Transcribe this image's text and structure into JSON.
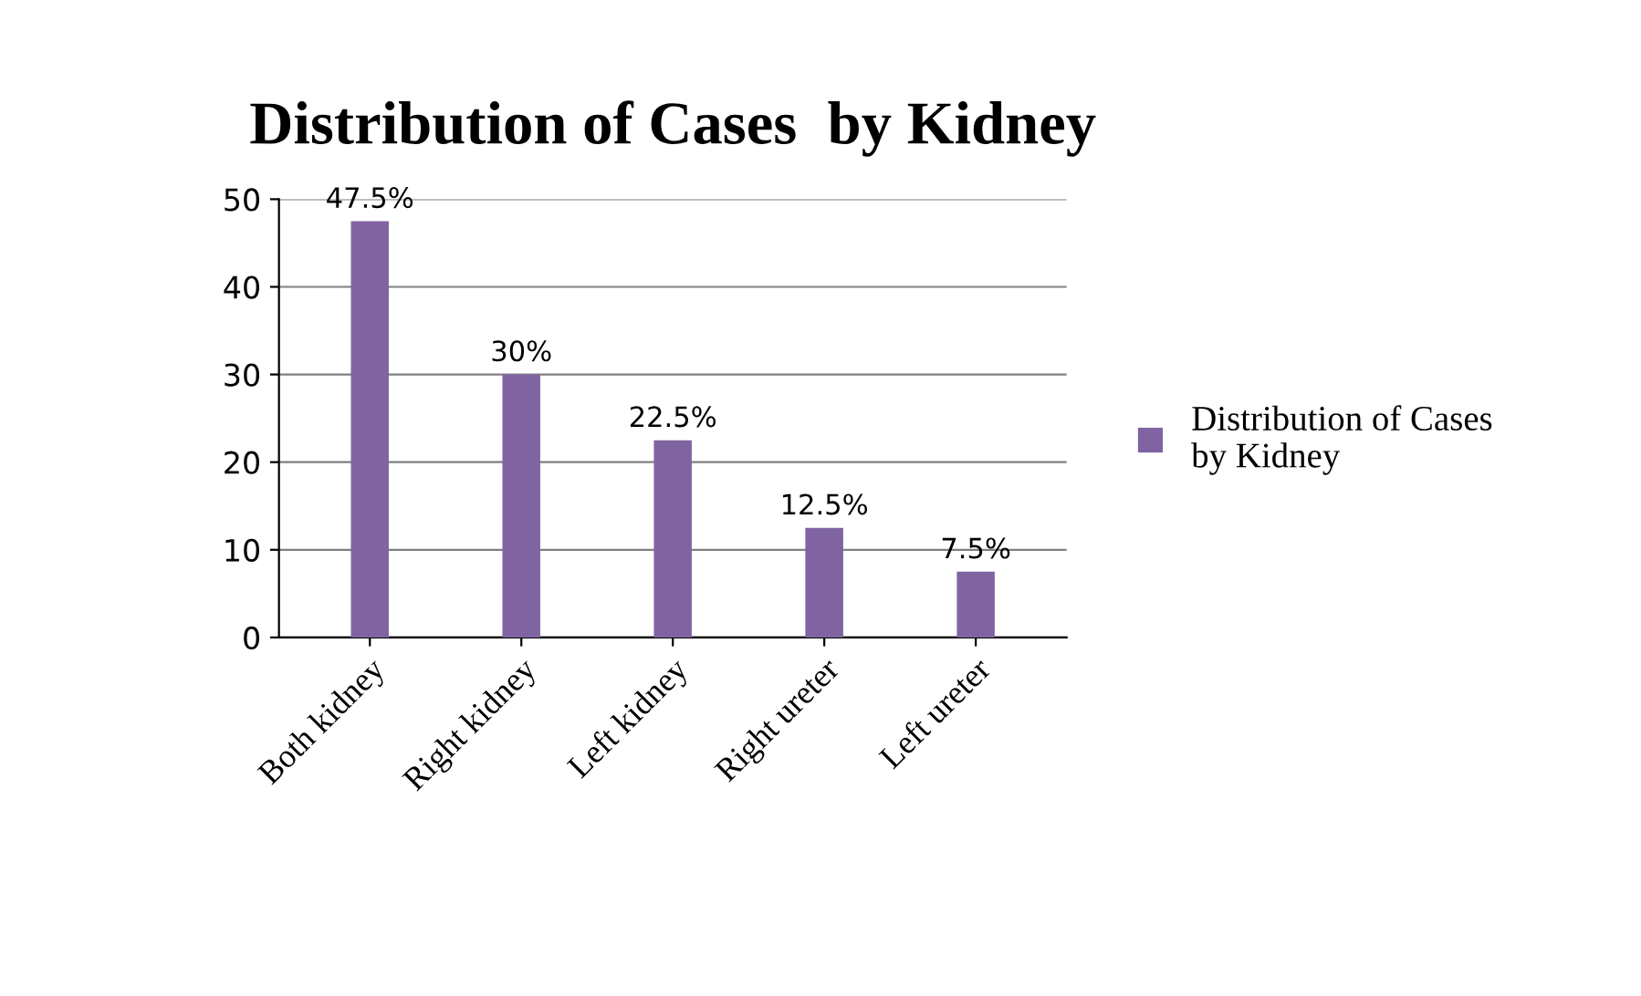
{
  "chart_data": {
    "type": "bar",
    "title": "Distribution of Cases  by Kidney",
    "categories": [
      "Both kidney",
      "Right kidney",
      "Left kidney",
      "Right ureter",
      "Left ureter"
    ],
    "series": [
      {
        "name": "Distribution of Cases\nby Kidney",
        "color": "#8064a2",
        "values": [
          47.5,
          30,
          22.5,
          12.5,
          7.5
        ],
        "value_labels": [
          "47.5%",
          "30%",
          "22.5%",
          "12.5%",
          "7.5%"
        ]
      }
    ],
    "ylim": [
      0,
      50
    ],
    "yticks": [
      0,
      10,
      20,
      30,
      40,
      50
    ],
    "grid": "y",
    "legend": "right"
  }
}
